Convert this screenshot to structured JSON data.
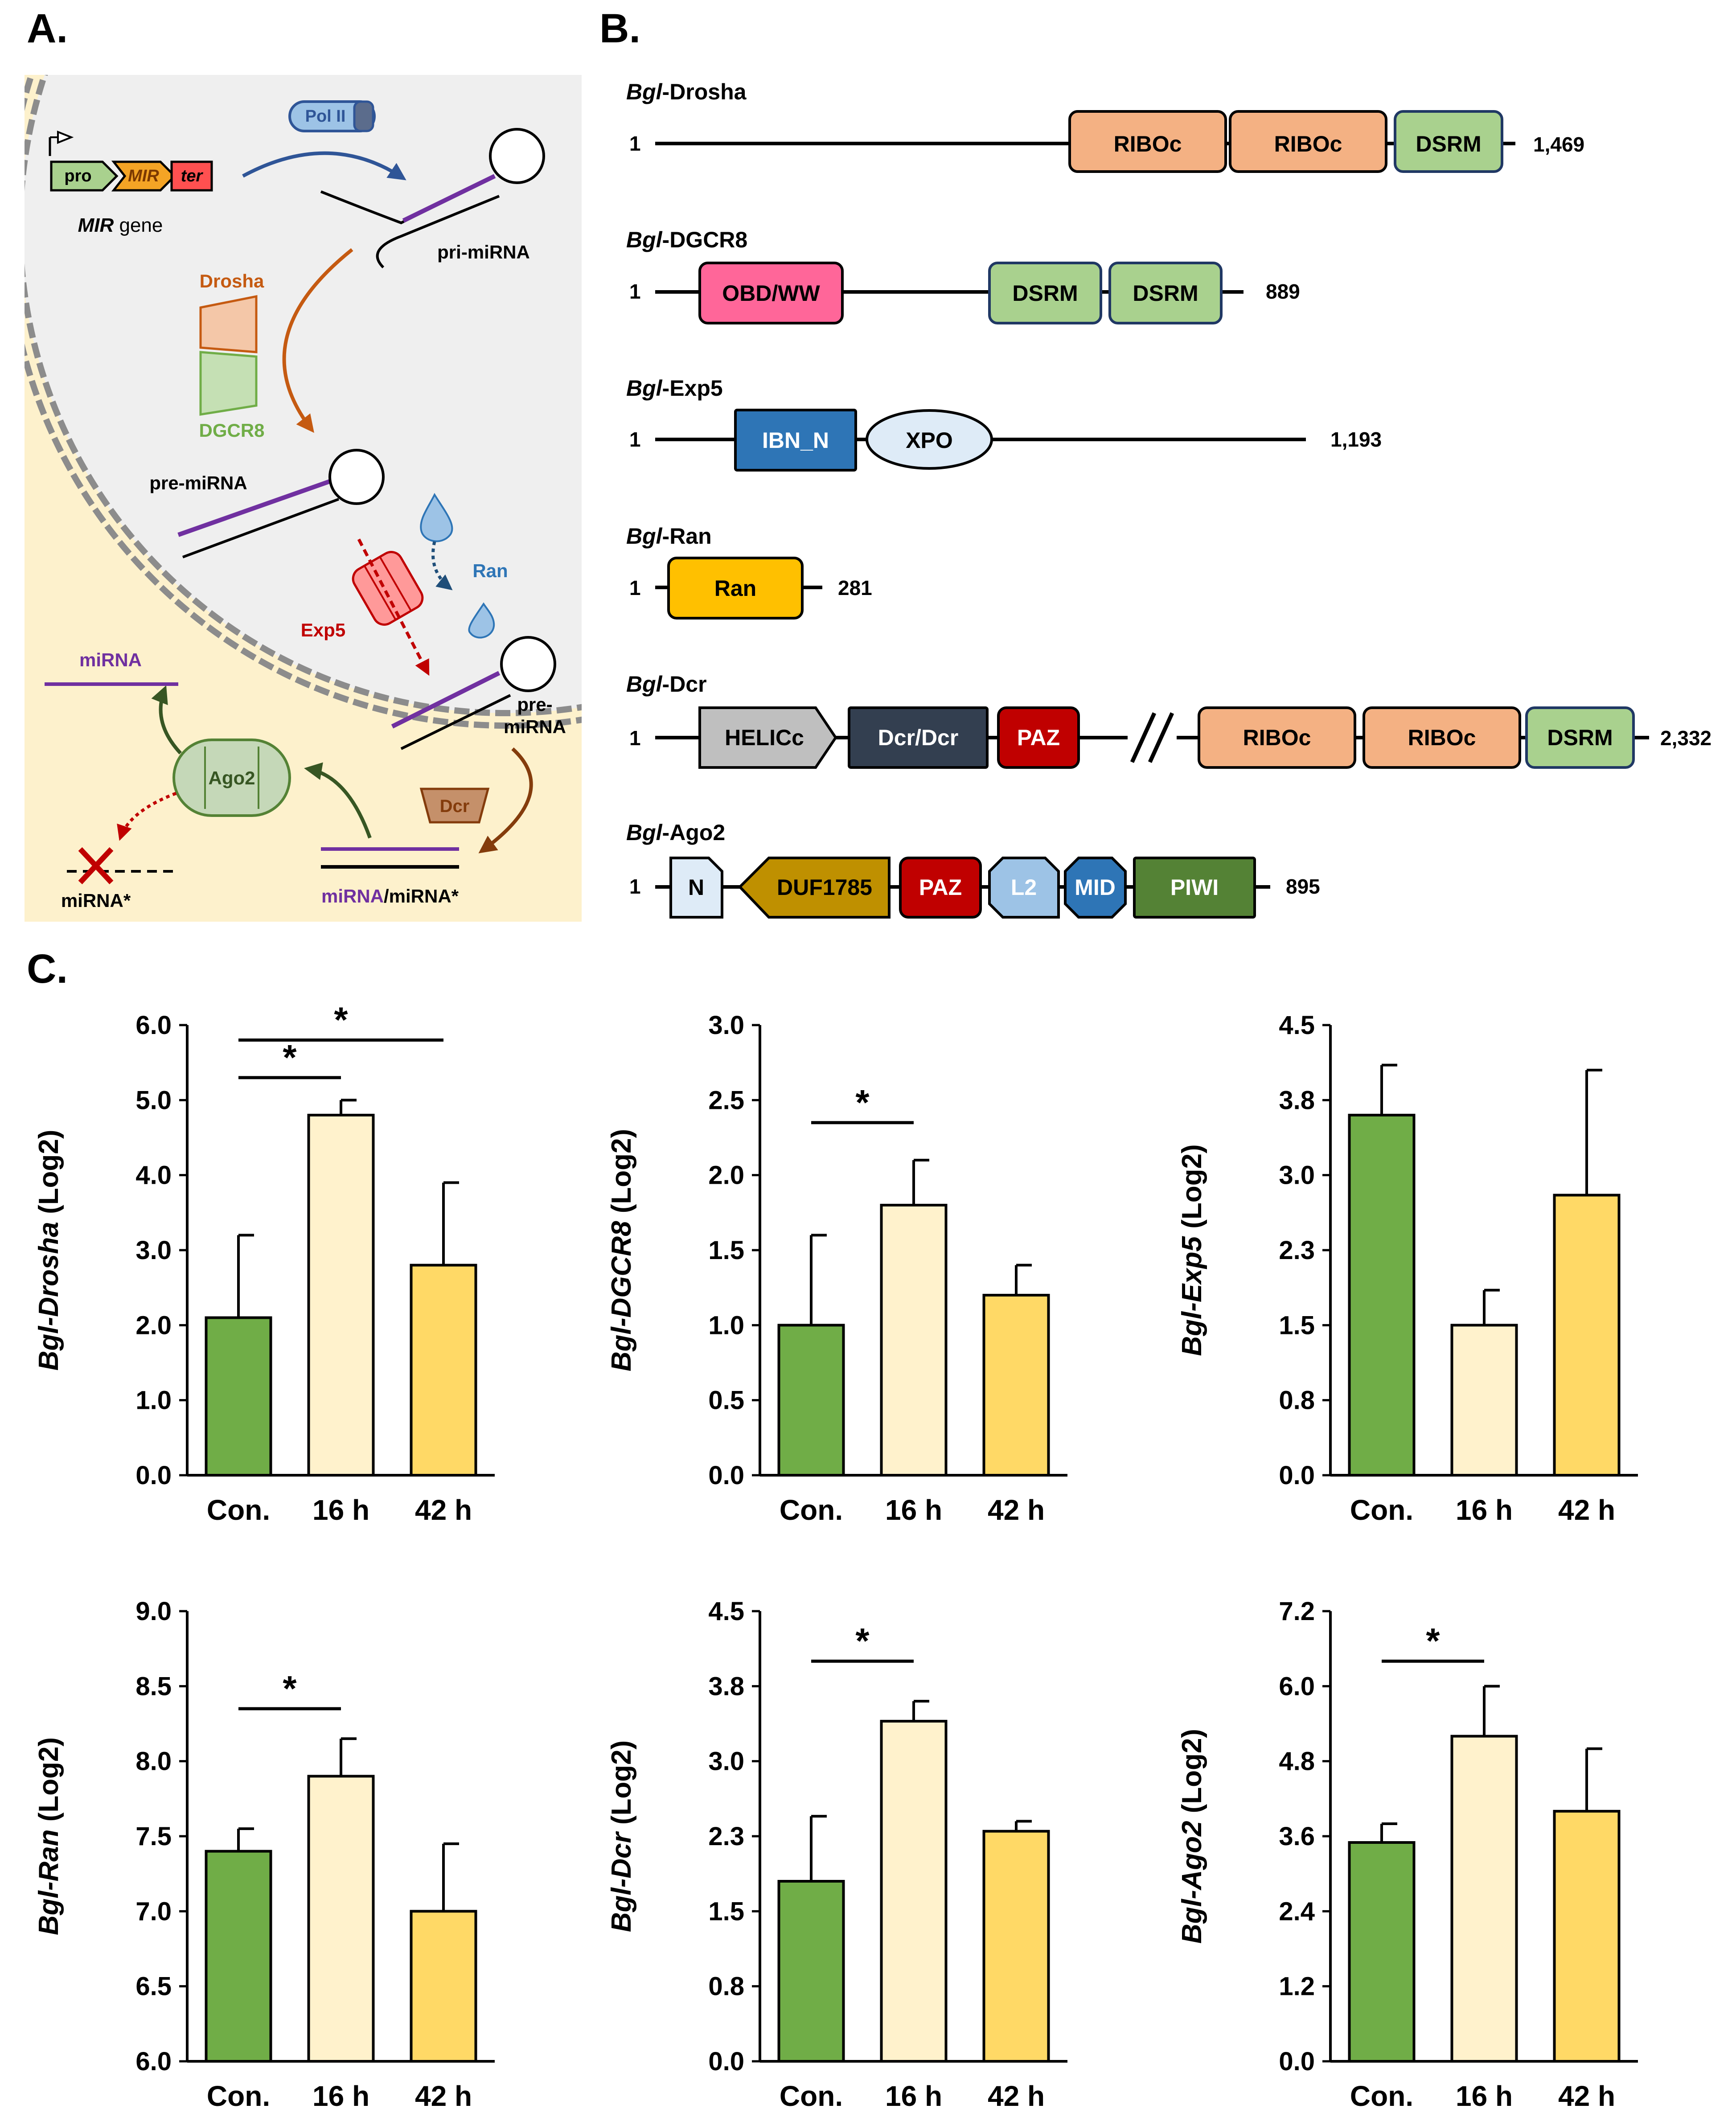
{
  "panelA": {
    "label": "A.",
    "pro": "pro",
    "mir": "MIR",
    "ter": "ter",
    "gene_it": "MIR",
    "gene_rest": " gene",
    "polii": "Pol II",
    "pri_mirna": "pri-miRNA",
    "drosha": "Drosha",
    "dgcr8": "DGCR8",
    "pre_mirna": "pre-miRNA",
    "ran": "Ran",
    "exp5": "Exp5",
    "pre_mirna2_line1": "pre-",
    "pre_mirna2_line2": "miRNA",
    "dcr": "Dcr",
    "ago2": "Ago2",
    "mirna": "miRNA",
    "mirna_star": "miRNA*",
    "duplex_a": "miRNA",
    "duplex_b": "/miRNA*",
    "colors": {
      "nucleus": "#efefef",
      "cytoplasm": "#fdf1cc",
      "purple": "#7030a0",
      "drosha": "#c55a11",
      "dgcr8": "#70ad47",
      "exp5": "#c00000",
      "ran": "#2e75b6",
      "dcr": "#843c0c",
      "ago2": "#375623"
    }
  },
  "panelB": {
    "label": "B.",
    "proteins": [
      {
        "prefix": "Bgl",
        "suffix": "-Drosha",
        "start": "1",
        "end": "1,469",
        "domains": [
          "RIBOc",
          "RIBOc",
          "DSRM"
        ]
      },
      {
        "prefix": "Bgl",
        "suffix": "-DGCR8",
        "start": "1",
        "end": "889",
        "domains": [
          "OBD/WW",
          "DSRM",
          "DSRM"
        ]
      },
      {
        "prefix": "Bgl",
        "suffix": "-Exp5",
        "start": "1",
        "end": "1,193",
        "domains": [
          "IBN_N",
          "XPO"
        ]
      },
      {
        "prefix": "Bgl",
        "suffix": "-Ran",
        "start": "1",
        "end": "281",
        "domains": [
          "Ran"
        ]
      },
      {
        "prefix": "Bgl",
        "suffix": "-Dcr",
        "start": "1",
        "end": "2,332",
        "domains": [
          "HELICc",
          "Dcr/Dcr",
          "PAZ",
          "RIBOc",
          "RIBOc",
          "DSRM"
        ]
      },
      {
        "prefix": "Bgl",
        "suffix": "-Ago2",
        "start": "1",
        "end": "895",
        "domains": [
          "N",
          "DUF1785",
          "PAZ",
          "L2",
          "MID",
          "PIWI"
        ]
      }
    ],
    "domain_colors": {
      "RIBOc": "#f4b183",
      "DSRM": "#a9d18e",
      "OBD/WW": "#ff6699",
      "IBN_N": "#2e75b6",
      "XPO": "#deebf7",
      "Ran": "#ffc000",
      "HELICc": "#bfbfbf",
      "Dcr/Dcr": "#333f50",
      "PAZ": "#c00000",
      "N": "#deebf7",
      "DUF1785": "#bf9000",
      "L2": "#9dc3e6",
      "MID": "#2e75b6",
      "PIWI": "#548235"
    }
  },
  "panelC": {
    "label": "C."
  },
  "chart_data": [
    {
      "type": "bar",
      "gene": "Bgl-Drosha",
      "ylabel_it_prefix": "Bgl",
      "ylabel_it_gene": "-Drosha",
      "ylabel_rest": " (Log2)",
      "categories": [
        "Con.",
        "16 h",
        "42 h"
      ],
      "values": [
        2.1,
        4.8,
        2.8
      ],
      "errors": [
        1.1,
        0.2,
        1.1
      ],
      "ylim": [
        0,
        6
      ],
      "yticks": [
        "0.0",
        "1.0",
        "2.0",
        "3.0",
        "4.0",
        "5.0",
        "6.0"
      ],
      "significance": [
        {
          "from": 0,
          "to": 1,
          "label": "*",
          "y": 5.3
        },
        {
          "from": 0,
          "to": 2,
          "label": "*",
          "y": 5.8
        }
      ],
      "colors": [
        "#70ad47",
        "#fff2cc",
        "#ffd966"
      ]
    },
    {
      "type": "bar",
      "gene": "Bgl-DGCR8",
      "ylabel_it_prefix": "Bgl",
      "ylabel_it_gene": "-DGCR8",
      "ylabel_rest": " (Log2)",
      "categories": [
        "Con.",
        "16 h",
        "42 h"
      ],
      "values": [
        1.0,
        1.8,
        1.2
      ],
      "errors": [
        0.6,
        0.3,
        0.2
      ],
      "ylim": [
        0,
        3
      ],
      "yticks": [
        "0.0",
        "0.5",
        "1.0",
        "1.5",
        "2.0",
        "2.5",
        "3.0"
      ],
      "significance": [
        {
          "from": 0,
          "to": 1,
          "label": "*",
          "y": 2.35
        }
      ],
      "colors": [
        "#70ad47",
        "#fff2cc",
        "#ffd966"
      ]
    },
    {
      "type": "bar",
      "gene": "Bgl-Exp5",
      "ylabel_it_prefix": "Bgl",
      "ylabel_it_gene": "-Exp5",
      "ylabel_rest": " (Log2)",
      "categories": [
        "Con.",
        "16 h",
        "42 h"
      ],
      "values": [
        3.6,
        1.5,
        2.8
      ],
      "errors": [
        0.5,
        0.35,
        1.25
      ],
      "ylim": [
        0,
        4.5
      ],
      "yticks": [
        "0.0",
        "0.8",
        "1.5",
        "2.3",
        "3.0",
        "3.8",
        "4.5"
      ],
      "significance": [],
      "colors": [
        "#70ad47",
        "#fff2cc",
        "#ffd966"
      ]
    },
    {
      "type": "bar",
      "gene": "Bgl-Ran",
      "ylabel_it_prefix": "Bgl",
      "ylabel_it_gene": "-Ran",
      "ylabel_rest": " (Log2)",
      "categories": [
        "Con.",
        "16 h",
        "42 h"
      ],
      "values": [
        7.4,
        7.9,
        7.0
      ],
      "errors": [
        0.15,
        0.25,
        0.45
      ],
      "ylim": [
        6,
        9
      ],
      "yticks": [
        "6.0",
        "6.5",
        "7.0",
        "7.5",
        "8.0",
        "8.5",
        "9.0"
      ],
      "significance": [
        {
          "from": 0,
          "to": 1,
          "label": "*",
          "y": 8.35
        }
      ],
      "colors": [
        "#70ad47",
        "#fff2cc",
        "#ffd966"
      ]
    },
    {
      "type": "bar",
      "gene": "Bgl-Dcr",
      "ylabel_it_prefix": "Bgl",
      "ylabel_it_gene": "-Dcr",
      "ylabel_rest": " (Log2)",
      "categories": [
        "Con.",
        "16 h",
        "42 h"
      ],
      "values": [
        1.8,
        3.4,
        2.3
      ],
      "errors": [
        0.65,
        0.2,
        0.1
      ],
      "ylim": [
        0,
        4.5
      ],
      "yticks": [
        "0.0",
        "0.8",
        "1.5",
        "2.3",
        "3.0",
        "3.8",
        "4.5"
      ],
      "significance": [
        {
          "from": 0,
          "to": 1,
          "label": "*",
          "y": 4.0
        }
      ],
      "colors": [
        "#70ad47",
        "#fff2cc",
        "#ffd966"
      ]
    },
    {
      "type": "bar",
      "gene": "Bgl-Ago2",
      "ylabel_it_prefix": "Bgl",
      "ylabel_it_gene": "-Ago2",
      "ylabel_rest": " (Log2)",
      "categories": [
        "Con.",
        "16 h",
        "42 h"
      ],
      "values": [
        3.5,
        5.2,
        4.0
      ],
      "errors": [
        0.3,
        0.8,
        1.0
      ],
      "ylim": [
        0,
        7.2
      ],
      "yticks": [
        "0.0",
        "1.2",
        "2.4",
        "3.6",
        "4.8",
        "6.0",
        "7.2"
      ],
      "significance": [
        {
          "from": 0,
          "to": 1,
          "label": "*",
          "y": 6.4
        }
      ],
      "colors": [
        "#70ad47",
        "#fff2cc",
        "#ffd966"
      ]
    }
  ]
}
